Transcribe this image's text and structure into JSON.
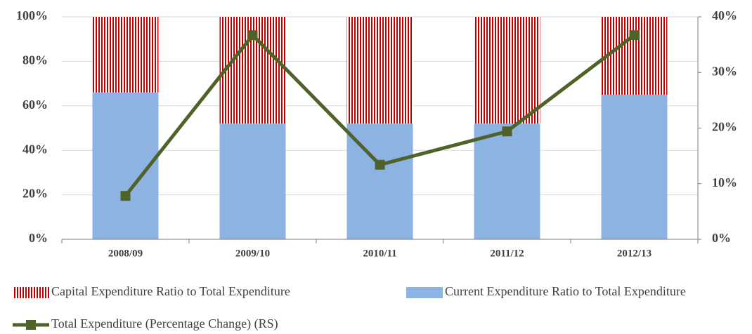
{
  "chart_data": {
    "type": "bar",
    "categories": [
      "2008/09",
      "2009/10",
      "2010/11",
      "2011/12",
      "2012/13"
    ],
    "series": [
      {
        "name": "Capital Expenditure Ratio to Total Expenditure",
        "color": "#c00000",
        "hatch": "vertical",
        "values": [
          34,
          48,
          48,
          48,
          35
        ]
      },
      {
        "name": "Current Expenditure Ratio to Total Expenditure",
        "color": "#8db3e2",
        "values": [
          66,
          52,
          52,
          52,
          65
        ]
      },
      {
        "name": "Total Expenditure (Percentage Change) (RS)",
        "color": "#4f6228",
        "type": "line",
        "axis": "y2",
        "values": [
          7.8,
          36.7,
          13.4,
          19.4,
          36.7
        ]
      }
    ],
    "ylim": [
      0,
      100
    ],
    "yticks": [
      {
        "value": 0,
        "label": "0%"
      },
      {
        "value": 20,
        "label": "20%"
      },
      {
        "value": 40,
        "label": "40%"
      },
      {
        "value": 60,
        "label": "60%"
      },
      {
        "value": 80,
        "label": "80%"
      },
      {
        "value": 100,
        "label": "100%"
      }
    ],
    "y2lim": [
      0,
      40
    ],
    "y2ticks": [
      {
        "value": 0,
        "label": "0%"
      },
      {
        "value": 10,
        "label": "10%"
      },
      {
        "value": 20,
        "label": "20%"
      },
      {
        "value": 30,
        "label": "30%"
      },
      {
        "value": 40,
        "label": "40%"
      }
    ],
    "grid": true
  }
}
